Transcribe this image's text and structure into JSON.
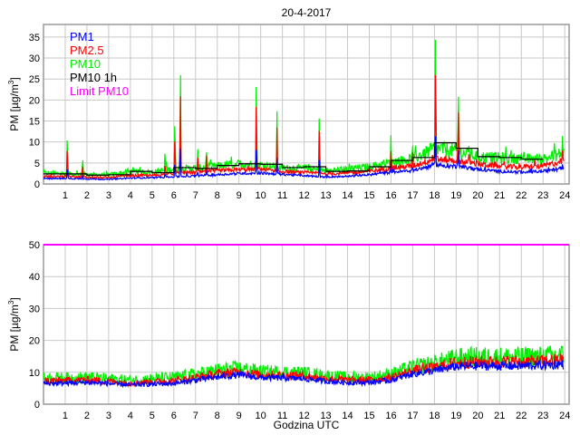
{
  "title": "20-4-2017",
  "xlabel": "Godzina UTC",
  "colors": {
    "PM1": "#0000ff",
    "PM2.5": "#ff0000",
    "PM10": "#00ee00",
    "PM10 1h": "#000000",
    "Limit PM10": "#ff00ff",
    "grid": "#c8c8c8",
    "axis": "#999999"
  },
  "legend": [
    "PM1",
    "PM2.5",
    "PM10",
    "PM10 1h",
    "Limit PM10"
  ],
  "chart_data": [
    {
      "type": "line",
      "ylabel": "PM [µg/m3]",
      "xlim": [
        0,
        24.2
      ],
      "ylim": [
        0,
        38
      ],
      "xticks": [
        1,
        2,
        3,
        4,
        5,
        6,
        7,
        8,
        9,
        10,
        11,
        12,
        13,
        14,
        15,
        16,
        17,
        18,
        19,
        20,
        21,
        22,
        23,
        24
      ],
      "yticks": [
        0,
        5,
        10,
        15,
        20,
        25,
        30,
        35
      ],
      "grid": true,
      "legend_position": "top-left",
      "hourly_base": {
        "hours": [
          0,
          1,
          2,
          3,
          4,
          5,
          6,
          7,
          8,
          9,
          10,
          11,
          12,
          13,
          14,
          15,
          16,
          17,
          18,
          19,
          20,
          21,
          22,
          23,
          24
        ],
        "PM1": [
          1.3,
          1.3,
          1.2,
          1.1,
          1.4,
          1.5,
          1.7,
          1.9,
          2.2,
          2.5,
          2.6,
          2.3,
          2.0,
          1.7,
          1.8,
          2.2,
          2.8,
          3.2,
          4.5,
          4.2,
          3.5,
          3.0,
          2.8,
          3.0,
          3.8
        ],
        "PM2.5": [
          1.8,
          1.8,
          1.6,
          1.5,
          2.0,
          2.0,
          2.5,
          2.8,
          3.1,
          3.4,
          3.5,
          3.0,
          2.7,
          2.4,
          2.6,
          3.0,
          3.8,
          4.3,
          6.0,
          5.6,
          4.8,
          4.2,
          4.0,
          4.3,
          5.5
        ],
        "PM10": [
          2.6,
          2.5,
          2.2,
          2.2,
          2.9,
          2.8,
          3.6,
          3.8,
          4.3,
          4.8,
          4.6,
          3.8,
          3.8,
          3.1,
          3.6,
          4.1,
          5.2,
          6.0,
          8.5,
          7.8,
          6.5,
          6.2,
          6.0,
          6.0,
          7.5
        ]
      },
      "PM10_peaks": [
        {
          "x": 1.1,
          "y": 12
        },
        {
          "x": 1.8,
          "y": 6.5
        },
        {
          "x": 5.6,
          "y": 7.5
        },
        {
          "x": 6.05,
          "y": 16.5
        },
        {
          "x": 6.3,
          "y": 30
        },
        {
          "x": 7.1,
          "y": 8
        },
        {
          "x": 7.5,
          "y": 8.5
        },
        {
          "x": 9.8,
          "y": 27
        },
        {
          "x": 10.75,
          "y": 16.5
        },
        {
          "x": 12.7,
          "y": 17.5
        },
        {
          "x": 16.0,
          "y": 11.5
        },
        {
          "x": 17.0,
          "y": 9.5
        },
        {
          "x": 18.05,
          "y": 38
        },
        {
          "x": 19.1,
          "y": 22.5
        },
        {
          "x": 19.6,
          "y": 10
        },
        {
          "x": 23.9,
          "y": 10.5
        }
      ],
      "PM10_1h": {
        "hours": [
          0,
          1,
          2,
          3,
          4,
          5,
          6,
          7,
          8,
          9,
          10,
          11,
          12,
          13,
          14,
          15,
          16,
          17,
          18,
          19,
          20,
          21,
          22
        ],
        "values": [
          2.4,
          2.4,
          2.1,
          2.2,
          3.0,
          2.7,
          3.9,
          3.7,
          4.4,
          4.8,
          4.7,
          3.9,
          4.1,
          3.0,
          3.1,
          4.1,
          5.6,
          6.3,
          9.8,
          8.5,
          6.5,
          6.3,
          5.9
        ]
      }
    },
    {
      "type": "line",
      "ylabel": "PM [µg/m3]",
      "xlim": [
        0,
        24.2
      ],
      "ylim": [
        0,
        50
      ],
      "xticks": [
        1,
        2,
        3,
        4,
        5,
        6,
        7,
        8,
        9,
        10,
        11,
        12,
        13,
        14,
        15,
        16,
        17,
        18,
        19,
        20,
        21,
        22,
        23,
        24
      ],
      "yticks": [
        0,
        10,
        20,
        30,
        40,
        50
      ],
      "grid": true,
      "limit_PM10": 50,
      "hourly_base": {
        "hours": [
          0,
          1,
          2,
          3,
          4,
          5,
          6,
          7,
          8,
          9,
          10,
          11,
          12,
          13,
          14,
          15,
          16,
          17,
          18,
          19,
          20,
          21,
          22,
          23,
          24
        ],
        "PM1": [
          6.5,
          6.6,
          6.8,
          6.5,
          6.0,
          6.3,
          6.5,
          7.5,
          8.5,
          9.2,
          8.3,
          8.2,
          8.0,
          7.2,
          6.8,
          6.8,
          7.5,
          9.5,
          10.5,
          11.8,
          12.0,
          12.0,
          12.0,
          12.2,
          12.5
        ],
        "PM2.5": [
          7.3,
          7.4,
          7.6,
          7.2,
          6.7,
          7.1,
          7.3,
          8.4,
          9.5,
          10.2,
          9.2,
          9.1,
          8.9,
          8.0,
          7.6,
          7.6,
          8.4,
          10.5,
          11.6,
          13.0,
          13.3,
          13.3,
          13.3,
          13.5,
          14.0
        ],
        "PM10": [
          8.2,
          8.2,
          8.4,
          8.0,
          7.5,
          8.0,
          8.3,
          9.4,
          10.6,
          11.2,
          10.2,
          10.0,
          9.8,
          8.9,
          8.4,
          8.4,
          9.4,
          11.6,
          12.8,
          14.5,
          14.8,
          14.8,
          14.8,
          15.0,
          15.5
        ]
      }
    }
  ]
}
